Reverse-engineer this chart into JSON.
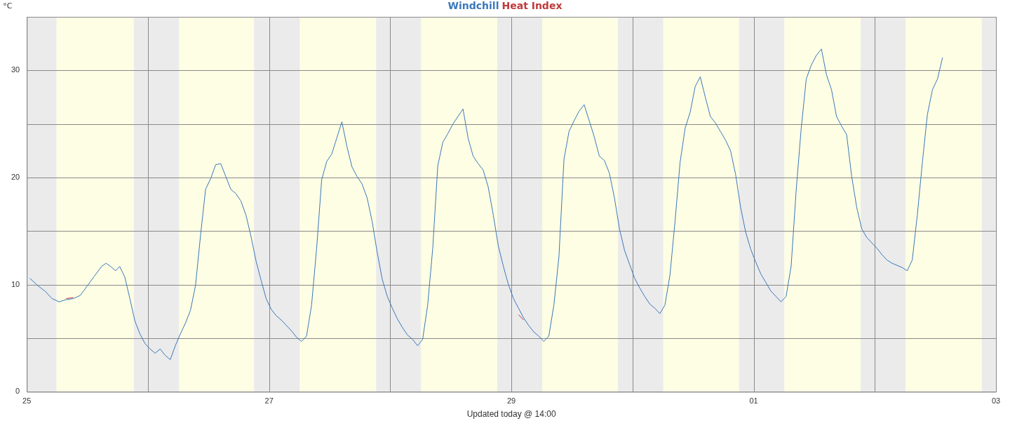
{
  "chart_data": {
    "type": "line",
    "xlabel": "Updated today @ 14:00",
    "ylabel": "°C",
    "xlim": [
      "--06-25",
      "--07-03"
    ],
    "xticks": [
      {
        "value": "--06-25",
        "label": "25"
      },
      {
        "value": "--06-26",
        "label": null
      },
      {
        "value": "--06-27",
        "label": "27"
      },
      {
        "value": "--06-28",
        "label": null
      },
      {
        "value": "--06-29",
        "label": "29"
      },
      {
        "value": "--06-30",
        "label": null
      },
      {
        "value": "--07-01",
        "label": "01"
      },
      {
        "value": "--07-02",
        "label": null
      },
      {
        "value": "--07-03",
        "label": "03"
      }
    ],
    "ylim": [
      0,
      35
    ],
    "yticks": [
      0,
      {
        "value": 5,
        "label": null
      },
      10,
      {
        "value": 15,
        "label": null
      },
      20,
      {
        "value": 25,
        "label": null
      },
      30
    ],
    "grid": true,
    "legend": "top",
    "line_style": "solid",
    "bands": [
      {
        "axis": "x",
        "from": "--06-25T00:00",
        "to": "--06-25T05:54",
        "color": "#ebebeb"
      },
      {
        "axis": "x",
        "from": "--06-25T05:54",
        "to": "--06-25T21:12",
        "color": "#fefee4"
      },
      {
        "axis": "x",
        "from": "--06-25T21:12",
        "to": "--06-26T06:12",
        "color": "#ebebeb"
      },
      {
        "axis": "x",
        "from": "--06-26T06:12",
        "to": "--06-26T21:00",
        "color": "#fefee4"
      },
      {
        "axis": "x",
        "from": "--06-26T21:00",
        "to": "--06-27T06:06",
        "color": "#ebebeb"
      },
      {
        "axis": "x",
        "from": "--06-27T06:06",
        "to": "--06-27T21:12",
        "color": "#fefee4"
      },
      {
        "axis": "x",
        "from": "--06-27T21:12",
        "to": "--06-28T06:06",
        "color": "#ebebeb"
      },
      {
        "axis": "x",
        "from": "--06-28T06:06",
        "to": "--06-28T21:12",
        "color": "#fefee4"
      },
      {
        "axis": "x",
        "from": "--06-28T21:12",
        "to": "--06-29T06:06",
        "color": "#ebebeb"
      },
      {
        "axis": "x",
        "from": "--06-29T06:06",
        "to": "--06-29T21:06",
        "color": "#fefee4"
      },
      {
        "axis": "x",
        "from": "--06-29T21:06",
        "to": "--06-30T06:06",
        "color": "#ebebeb"
      },
      {
        "axis": "x",
        "from": "--06-30T06:06",
        "to": "--06-30T21:06",
        "color": "#fefee4"
      },
      {
        "axis": "x",
        "from": "--06-30T21:06",
        "to": "--07-01T06:06",
        "color": "#ebebeb"
      },
      {
        "axis": "x",
        "from": "--07-01T06:06",
        "to": "--07-01T21:12",
        "color": "#fefee4"
      },
      {
        "axis": "x",
        "from": "--07-01T21:12",
        "to": "--07-02T06:06",
        "color": "#ebebeb"
      },
      {
        "axis": "x",
        "from": "--07-02T06:06",
        "to": "--07-02T21:12",
        "color": "#fefee4"
      },
      {
        "axis": "x",
        "from": "--07-02T21:12",
        "to": "--07-03T00:00",
        "color": "#ebebeb"
      }
    ],
    "series": [
      {
        "name": "Windchill",
        "color": "#3a78bc",
        "x": [
          "--06-25T00:36",
          "--06-25T02:12",
          "--06-25T03:36",
          "--06-25T05:00",
          "--06-25T06:24",
          "--06-25T07:48",
          "--06-25T09:12",
          "--06-25T10:36",
          "--06-25T12:00",
          "--06-25T13:24",
          "--06-25T14:48",
          "--06-25T15:42",
          "--06-25T16:36",
          "--06-25T17:36",
          "--06-25T18:24",
          "--06-25T19:25",
          "--06-25T20:25",
          "--06-25T21:25",
          "--06-25T22:25",
          "--06-25T23:25",
          "--06-26T00:25",
          "--06-26T01:25",
          "--06-26T02:25",
          "--06-26T03:25",
          "--06-26T04:25",
          "--06-26T05:25",
          "--06-26T06:25",
          "--06-26T07:25",
          "--06-26T08:25",
          "--06-26T09:25",
          "--06-26T10:25",
          "--06-26T11:25",
          "--06-26T12:25",
          "--06-26T13:25",
          "--06-26T14:25",
          "--06-26T15:25",
          "--06-26T16:25",
          "--06-26T17:25",
          "--06-26T18:25",
          "--06-26T19:25",
          "--06-26T20:25",
          "--06-26T21:25",
          "--06-26T22:25",
          "--06-26T23:25",
          "--06-27T00:25",
          "--06-27T01:25",
          "--06-27T02:25",
          "--06-27T03:25",
          "--06-27T04:25",
          "--06-27T05:25",
          "--06-27T06:25",
          "--06-27T07:25",
          "--06-27T08:25",
          "--06-27T09:25",
          "--06-27T10:25",
          "--06-27T11:25",
          "--06-27T12:25",
          "--06-27T13:25",
          "--06-27T14:25",
          "--06-27T15:25",
          "--06-27T16:25",
          "--06-27T17:25",
          "--06-27T18:25",
          "--06-27T19:25",
          "--06-27T20:25",
          "--06-27T21:25",
          "--06-27T22:25",
          "--06-27T23:25",
          "--06-28T00:25",
          "--06-28T01:25",
          "--06-28T02:25",
          "--06-28T03:25",
          "--06-28T04:25",
          "--06-28T05:25",
          "--06-28T06:25",
          "--06-28T07:25",
          "--06-28T08:25",
          "--06-28T09:25",
          "--06-28T10:25",
          "--06-28T11:25",
          "--06-28T12:25",
          "--06-28T13:25",
          "--06-28T14:25",
          "--06-28T15:25",
          "--06-28T16:25",
          "--06-28T17:25",
          "--06-28T18:25",
          "--06-28T19:25",
          "--06-28T20:25",
          "--06-28T21:25",
          "--06-28T22:25",
          "--06-28T23:25",
          "--06-29T00:25",
          "--06-29T01:25",
          "--06-29T02:25",
          "--06-29T03:25",
          "--06-29T04:25",
          "--06-29T05:25",
          "--06-29T06:25",
          "--06-29T07:25",
          "--06-29T08:25",
          "--06-29T09:25",
          "--06-29T10:25",
          "--06-29T11:25",
          "--06-29T12:25",
          "--06-29T13:25",
          "--06-29T14:25",
          "--06-29T15:25",
          "--06-29T16:25",
          "--06-29T17:25",
          "--06-29T18:25",
          "--06-29T19:25",
          "--06-29T20:25",
          "--06-29T21:25",
          "--06-29T22:25",
          "--06-29T23:25",
          "--06-30T00:25",
          "--06-30T01:25",
          "--06-30T02:25",
          "--06-30T03:25",
          "--06-30T04:25",
          "--06-30T05:25",
          "--06-30T06:25",
          "--06-30T07:25",
          "--06-30T08:25",
          "--06-30T09:25",
          "--06-30T10:25",
          "--06-30T11:25",
          "--06-30T12:25",
          "--06-30T13:25",
          "--06-30T14:25",
          "--06-30T15:25",
          "--06-30T16:25",
          "--06-30T17:25",
          "--06-30T18:25",
          "--06-30T19:25",
          "--06-30T20:25",
          "--06-30T21:25",
          "--06-30T22:25",
          "--06-30T23:25",
          "--07-01T00:25",
          "--07-01T01:25",
          "--07-01T02:25",
          "--07-01T03:25",
          "--07-01T04:25",
          "--07-01T05:25",
          "--07-01T06:25",
          "--07-01T07:25",
          "--07-01T08:25",
          "--07-01T09:25",
          "--07-01T10:25",
          "--07-01T11:25",
          "--07-01T12:25",
          "--07-01T13:25",
          "--07-01T14:25",
          "--07-01T15:25",
          "--07-01T16:25",
          "--07-01T17:25",
          "--07-01T18:25",
          "--07-01T19:25",
          "--07-01T20:25",
          "--07-01T21:25",
          "--07-01T22:25",
          "--07-01T23:25",
          "--07-02T00:25",
          "--07-02T01:25",
          "--07-02T02:25",
          "--07-02T03:25",
          "--07-02T04:25",
          "--07-02T05:25",
          "--07-02T06:25",
          "--07-02T07:25",
          "--07-02T08:25",
          "--07-02T09:25",
          "--07-02T10:25",
          "--07-02T11:25",
          "--07-02T12:25",
          "--07-02T13:25"
        ],
        "values": [
          10.6,
          9.9,
          9.4,
          8.7,
          8.4,
          8.6,
          8.7,
          9.0,
          9.9,
          10.8,
          11.7,
          12.0,
          11.7,
          11.3,
          11.7,
          10.7,
          8.7,
          6.6,
          5.4,
          4.5,
          4.0,
          3.6,
          4.0,
          3.4,
          3.0,
          4.3,
          5.4,
          6.4,
          7.6,
          9.9,
          14.6,
          18.9,
          19.9,
          21.2,
          21.3,
          20.1,
          18.9,
          18.5,
          17.8,
          16.5,
          14.5,
          12.2,
          10.4,
          8.7,
          7.7,
          7.1,
          6.7,
          6.2,
          5.7,
          5.1,
          4.7,
          5.2,
          8.1,
          13.4,
          19.8,
          21.5,
          22.2,
          23.7,
          25.2,
          22.9,
          21.0,
          20.1,
          19.4,
          18.1,
          15.9,
          13.0,
          10.5,
          8.9,
          7.8,
          6.8,
          6.0,
          5.3,
          4.9,
          4.3,
          4.9,
          8.1,
          13.4,
          21.1,
          23.3,
          24.1,
          25.0,
          25.7,
          26.4,
          23.7,
          22.0,
          21.3,
          20.7,
          19.1,
          16.5,
          13.6,
          11.7,
          10.0,
          8.7,
          7.8,
          6.9,
          6.2,
          5.6,
          5.2,
          4.7,
          5.2,
          8.1,
          12.6,
          21.7,
          24.3,
          25.3,
          26.2,
          26.8,
          25.3,
          23.8,
          22.0,
          21.6,
          20.4,
          18.1,
          15.2,
          13.2,
          11.9,
          10.6,
          9.7,
          8.9,
          8.2,
          7.8,
          7.3,
          8.1,
          10.9,
          15.9,
          21.4,
          24.6,
          26.1,
          28.5,
          29.4,
          27.5,
          25.7,
          25.1,
          24.3,
          23.5,
          22.5,
          20.3,
          17.2,
          14.9,
          13.3,
          12.1,
          11.0,
          10.2,
          9.4,
          8.9,
          8.4,
          8.9,
          11.7,
          18.8,
          24.6,
          29.2,
          30.5,
          31.4,
          32.0,
          29.6,
          28.2,
          25.7,
          24.8,
          24.0,
          20.1,
          17.2,
          15.2,
          14.4,
          13.9,
          13.4,
          12.8,
          12.3,
          12.0,
          11.8,
          11.6,
          11.3,
          12.3,
          16.5,
          21.4,
          25.9,
          28.2,
          29.2,
          31.2
        ]
      },
      {
        "name": "Heat Index",
        "color": "#c0393b",
        "x": [
          "--06-25T07:48",
          "--06-25T09:12",
          "--06-27T02:00",
          "--06-29T01:25",
          "--06-29T02:25"
        ],
        "values": [
          8.7,
          8.8,
          null,
          7.2,
          6.7
        ]
      }
    ]
  }
}
